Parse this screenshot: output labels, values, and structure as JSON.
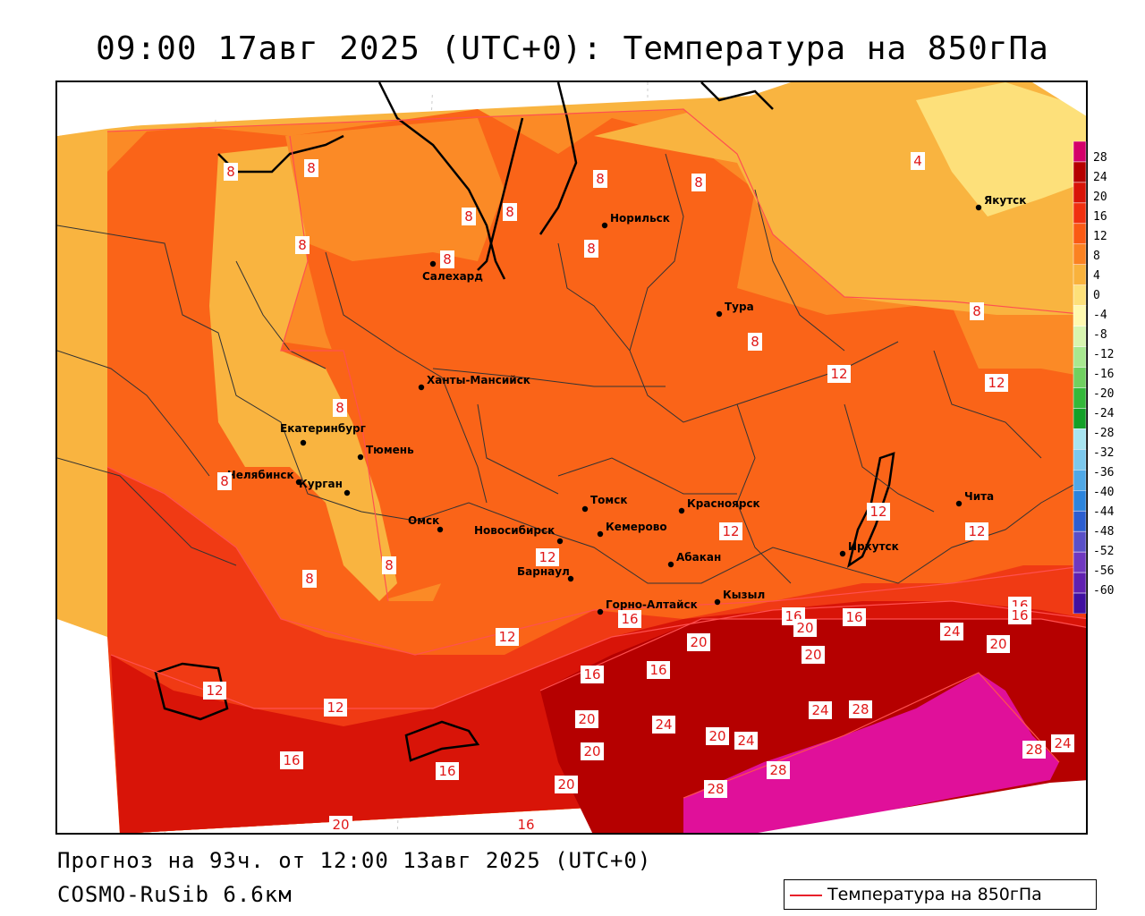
{
  "header": {
    "title": "09:00 17авг 2025 (UTC+0): Температура на 850гПа"
  },
  "footer": {
    "forecast": "Прогноз на 93ч. от 12:00 13авг 2025 (UTC+0)",
    "model": "COSMO-RuSib 6.6км"
  },
  "legend": {
    "label": "Температура на 850гПа",
    "line_color": "#e8202a"
  },
  "colorbar": {
    "labels": [
      "28",
      "24",
      "20",
      "16",
      "12",
      "8",
      "4",
      "0",
      "-4",
      "-8",
      "-12",
      "-16",
      "-20",
      "-24",
      "-28",
      "-32",
      "-36",
      "-40",
      "-44",
      "-48",
      "-52",
      "-56",
      "-60"
    ],
    "colors": [
      "#d4006a",
      "#b50000",
      "#d81408",
      "#f03010",
      "#fa5a14",
      "#fb8222",
      "#f9b23c",
      "#fde07a",
      "#fff9b0",
      "#d8f5b0",
      "#a8e890",
      "#70d060",
      "#34b83a",
      "#14a028",
      "#a8e4f0",
      "#7cc8ec",
      "#50a8e6",
      "#2c84dc",
      "#2c5ed0",
      "#5a50c8",
      "#7038c0",
      "#6020b0",
      "#4010a0"
    ]
  },
  "cities": [
    {
      "name": "Салехард"
    },
    {
      "name": "Норильск"
    },
    {
      "name": "Якутск"
    },
    {
      "name": "Тура"
    },
    {
      "name": "Ханты-Мансийск"
    },
    {
      "name": "Екатеринбург"
    },
    {
      "name": "Тюмень"
    },
    {
      "name": "Челябинск"
    },
    {
      "name": "Курган"
    },
    {
      "name": "Омск"
    },
    {
      "name": "Новосибирск"
    },
    {
      "name": "Томск"
    },
    {
      "name": "Кемерово"
    },
    {
      "name": "Красноярск"
    },
    {
      "name": "Барнаул"
    },
    {
      "name": "Абакан"
    },
    {
      "name": "Горно-Алтайск"
    },
    {
      "name": "Кызыл"
    },
    {
      "name": "Иркутск"
    },
    {
      "name": "Чита"
    }
  ],
  "isotherm_labels": [
    "4",
    "8",
    "12",
    "16",
    "20",
    "24",
    "28"
  ],
  "theme": {
    "t28": "#e0109a",
    "t24": "#b50000",
    "t20": "#d81408",
    "t16": "#f03a14",
    "t12": "#fa6418",
    "t8": "#fb8a26",
    "t4": "#f9b440",
    "t0": "#fde07a",
    "outside": "#ffffff"
  }
}
